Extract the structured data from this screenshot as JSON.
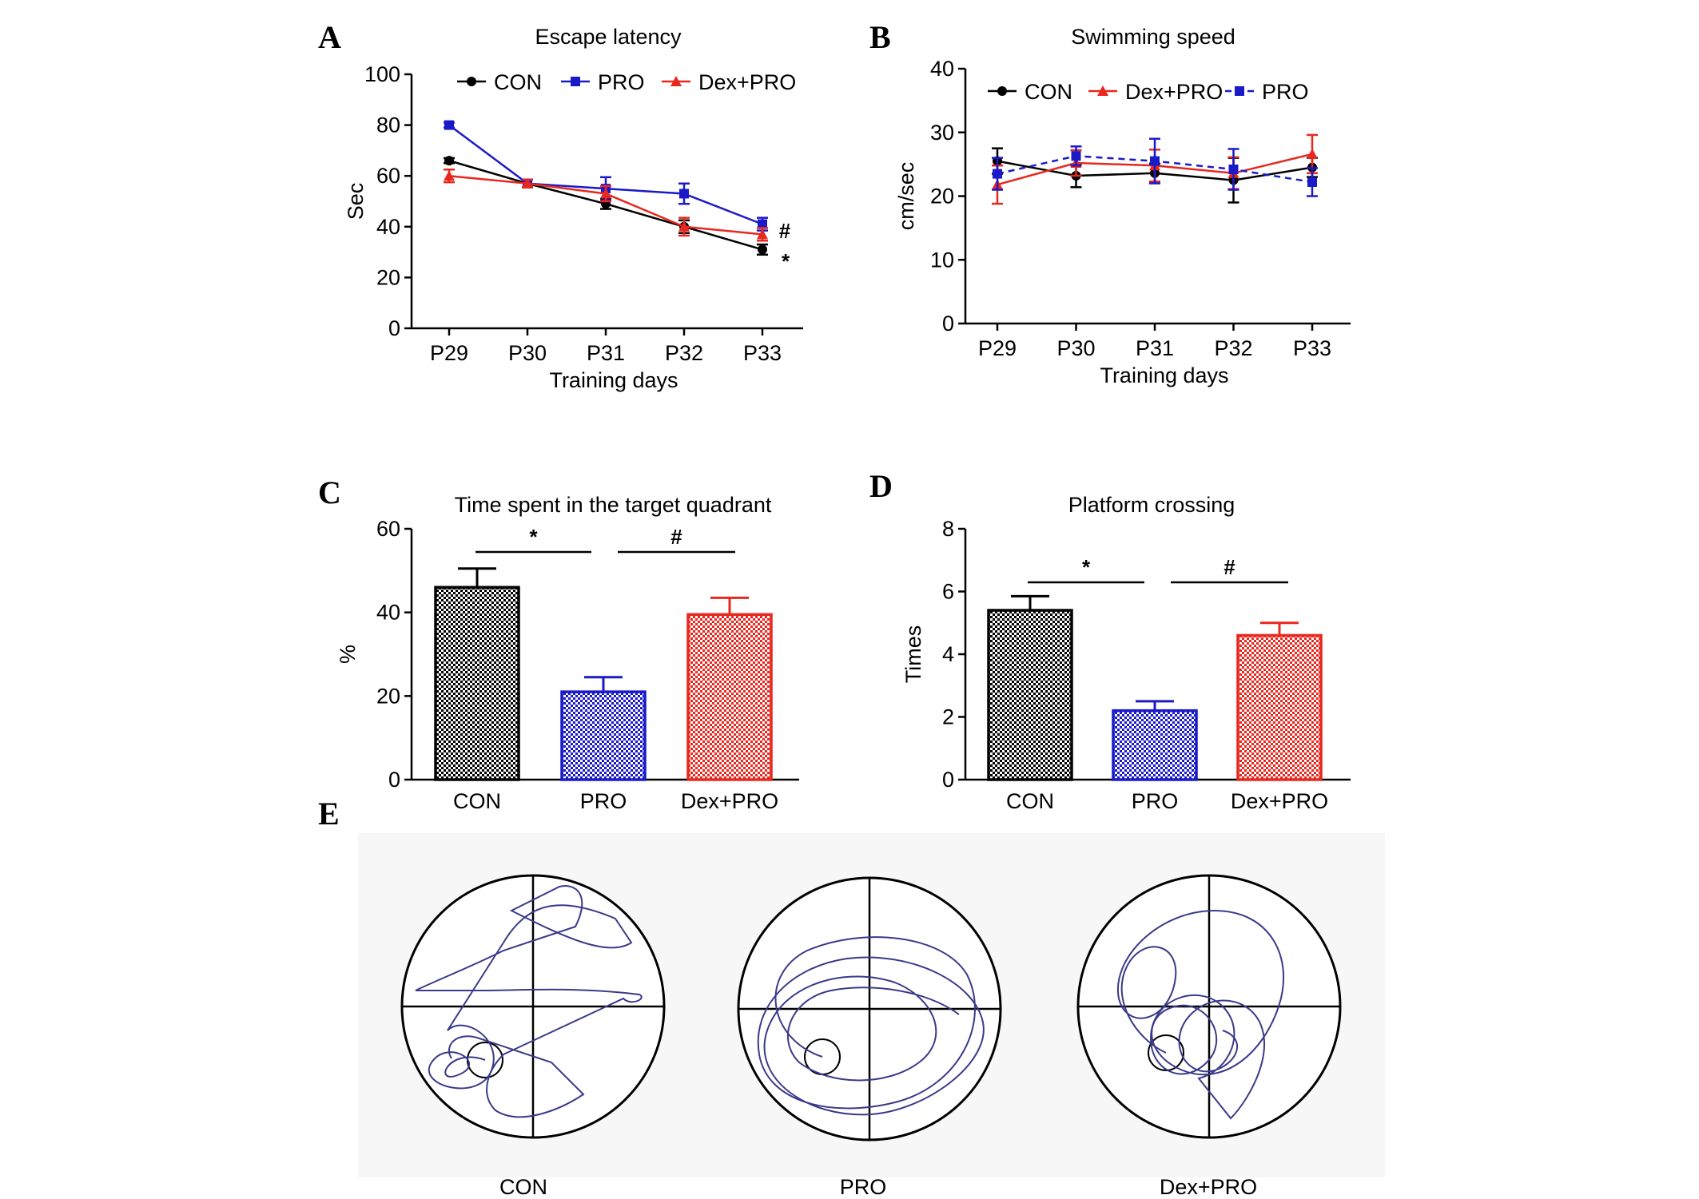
{
  "panels": {
    "A": {
      "letter": "A",
      "title": "Escape latency"
    },
    "B": {
      "letter": "B",
      "title": "Swimming speed"
    },
    "C": {
      "letter": "C",
      "title": "Time spent in the target quadrant"
    },
    "D": {
      "letter": "D",
      "title": "Platform crossing"
    },
    "E": {
      "letter": "E"
    }
  },
  "colors": {
    "con": "#000000",
    "pro": "#1a1ac8",
    "dexpro": "#e8281e"
  },
  "chart_data": [
    {
      "id": "A",
      "type": "line",
      "title": "Escape latency",
      "xlabel": "Training days",
      "ylabel": "Sec",
      "categories": [
        "P29",
        "P30",
        "P31",
        "P32",
        "P33"
      ],
      "ylim": [
        0,
        100
      ],
      "yticks": [
        0,
        20,
        40,
        60,
        80,
        100
      ],
      "legend": [
        "CON",
        "PRO",
        "Dex+PRO"
      ],
      "series": [
        {
          "name": "CON",
          "values": [
            66,
            57,
            49,
            40,
            31
          ],
          "errors": [
            1,
            1.5,
            2,
            2.5,
            2
          ]
        },
        {
          "name": "PRO",
          "values": [
            80,
            57,
            55,
            53,
            41
          ],
          "errors": [
            1,
            1.5,
            4.5,
            4,
            2.5
          ]
        },
        {
          "name": "Dex+PRO",
          "values": [
            60,
            57,
            53,
            40,
            37
          ],
          "errors": [
            2.5,
            1.5,
            3,
            3.5,
            2.5
          ]
        }
      ],
      "annotations": [
        "#",
        "*"
      ]
    },
    {
      "id": "B",
      "type": "line",
      "title": "Swimming speed",
      "xlabel": "Training days",
      "ylabel": "cm/sec",
      "categories": [
        "P29",
        "P30",
        "P31",
        "P32",
        "P33"
      ],
      "ylim": [
        0,
        40
      ],
      "yticks": [
        0,
        10,
        20,
        30,
        40
      ],
      "legend": [
        "CON",
        "Dex+PRO",
        "PRO"
      ],
      "series": [
        {
          "name": "CON",
          "values": [
            25.5,
            23.2,
            23.6,
            22.5,
            24.5
          ],
          "errors": [
            2,
            1.8,
            1.5,
            3.5,
            1.5
          ]
        },
        {
          "name": "Dex+PRO",
          "values": [
            21.8,
            25.2,
            24.8,
            23.6,
            26.6
          ],
          "errors": [
            3,
            2,
            2.5,
            2.5,
            3
          ]
        },
        {
          "name": "PRO",
          "values": [
            23.5,
            26.3,
            25.5,
            24.2,
            22.2
          ],
          "errors": [
            2.5,
            1.5,
            3.5,
            3.2,
            2.2
          ]
        }
      ]
    },
    {
      "id": "C",
      "type": "bar",
      "title": "Time spent in the target quadrant",
      "xlabel": "",
      "ylabel": "%",
      "categories": [
        "CON",
        "PRO",
        "Dex+PRO"
      ],
      "values": [
        46,
        21,
        39.5
      ],
      "errors": [
        4.5,
        3.5,
        4
      ],
      "ylim": [
        0,
        60
      ],
      "yticks": [
        0,
        20,
        40,
        60
      ],
      "significance": [
        "*",
        "#"
      ]
    },
    {
      "id": "D",
      "type": "bar",
      "title": "Platform crossing",
      "xlabel": "",
      "ylabel": "Times",
      "categories": [
        "CON",
        "PRO",
        "Dex+PRO"
      ],
      "values": [
        5.4,
        2.2,
        4.6
      ],
      "errors": [
        0.45,
        0.3,
        0.4
      ],
      "ylim": [
        0,
        8
      ],
      "yticks": [
        0,
        2,
        4,
        6,
        8
      ],
      "significance": [
        "*",
        "#"
      ]
    }
  ],
  "tracks": {
    "labels": [
      "CON",
      "PRO",
      "Dex+PRO"
    ]
  }
}
